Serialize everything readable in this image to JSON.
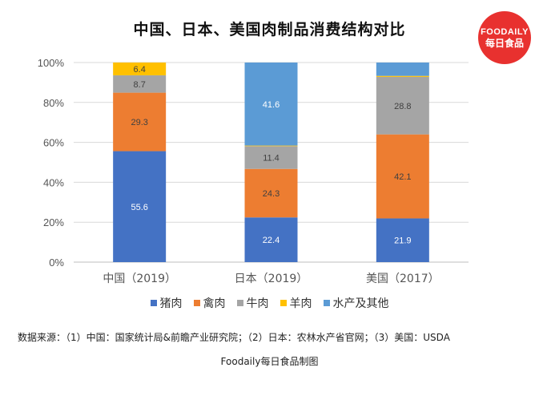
{
  "title": "中国、日本、美国肉制品消费结构对比",
  "logo": {
    "line1": "FOODAILY",
    "line2": "每日食品"
  },
  "source": "数据来源：（1）中国：国家统计局&前瞻产业研究院；（2）日本：农林水产省官网；（3）美国：USDA",
  "footer": "Foodaily每日食品制图",
  "chart_data": {
    "type": "bar",
    "stacked": true,
    "categories": [
      "中国（2019）",
      "日本（2019）",
      "美国（2017）"
    ],
    "y_ticks": [
      "0%",
      "20%",
      "40%",
      "60%",
      "80%",
      "100%"
    ],
    "ylim": [
      0,
      100
    ],
    "grid": true,
    "legend_position": "bottom",
    "series": [
      {
        "name": "猪肉",
        "color": "#4472c4",
        "values": [
          55.6,
          22.4,
          21.9
        ]
      },
      {
        "name": "禽肉",
        "color": "#ed7d31",
        "values": [
          29.3,
          24.3,
          42.1
        ]
      },
      {
        "name": "牛肉",
        "color": "#a5a5a5",
        "values": [
          8.7,
          11.4,
          28.8
        ]
      },
      {
        "name": "羊肉",
        "color": "#ffc000",
        "values": [
          6.4,
          0.3,
          0.5
        ]
      },
      {
        "name": "水产及其他",
        "color": "#5b9bd5",
        "values": [
          0,
          41.6,
          6.7
        ]
      }
    ],
    "data_labels": [
      [
        "55.6",
        "22.4",
        "21.9"
      ],
      [
        "29.3",
        "24.3",
        "42.1"
      ],
      [
        "8.7",
        "11.4",
        "28.8"
      ],
      [
        "6.4",
        "",
        ""
      ],
      [
        "",
        "41.6",
        ""
      ]
    ]
  }
}
